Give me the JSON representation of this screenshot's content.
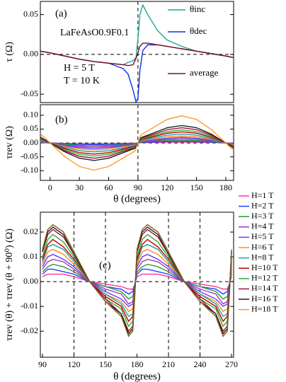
{
  "chart_data": [
    {
      "type": "line",
      "panel_label": "(a)",
      "ylabel": "τ (Ω)",
      "annotations": [
        "LaFeAsO0.9F0.1",
        "H = 5 T",
        "T = 10 K"
      ],
      "xlim": [
        -10,
        188
      ],
      "ylim": [
        -0.0605,
        0.0665
      ],
      "yticks": [
        -0.05,
        {
          "value": 0,
          "label": "0.00"
        },
        0.05
      ],
      "hlines": [
        0
      ],
      "vlines": [
        90
      ],
      "x": [
        -10,
        0,
        15,
        30,
        45,
        60,
        75,
        80,
        85,
        88,
        90,
        92,
        95,
        100,
        110,
        120,
        135,
        150,
        165,
        180,
        188
      ],
      "series": [
        {
          "name": "θinc",
          "color": "#1fa39a",
          "values": [
            0.004,
            0.002,
            -0.002,
            -0.006,
            -0.009,
            -0.011,
            -0.013,
            -0.01,
            -0.008,
            -0.004,
            0.02,
            0.05,
            0.062,
            0.05,
            0.03,
            0.018,
            0.01,
            0.004,
            0.001,
            -0.002,
            -0.004
          ]
        },
        {
          "name": "θdec",
          "color": "#1030e0",
          "values": [
            0.004,
            0.002,
            -0.002,
            -0.006,
            -0.009,
            -0.011,
            -0.018,
            -0.025,
            -0.045,
            -0.06,
            -0.055,
            -0.02,
            0.005,
            0.012,
            0.012,
            0.01,
            0.007,
            0.004,
            0.001,
            -0.002,
            -0.004
          ]
        },
        {
          "name": "average",
          "color": "#7a1020",
          "values": [
            0.004,
            0.002,
            -0.002,
            -0.006,
            -0.009,
            -0.011,
            -0.013,
            -0.014,
            -0.013,
            -0.005,
            0.002,
            0.01,
            0.014,
            0.014,
            0.012,
            0.01,
            0.007,
            0.004,
            0.001,
            -0.002,
            -0.004
          ]
        }
      ]
    },
    {
      "type": "line",
      "panel_label": "(b)",
      "ylabel": "τrev (Ω)",
      "xlabel": "θ (degrees)",
      "xlim": [
        -10,
        188
      ],
      "ylim": [
        -0.135,
        0.138
      ],
      "xticks": [
        0,
        30,
        60,
        90,
        120,
        150,
        180
      ],
      "yticks": [
        {
          "value": -0.1,
          "label": "-0.10"
        },
        -0.05,
        {
          "value": 0,
          "label": "0.00"
        },
        0.05,
        {
          "value": 0.1,
          "label": "0.10"
        }
      ],
      "hlines": [
        0
      ],
      "vlines": [
        90
      ],
      "x": [
        -10,
        0,
        15,
        30,
        45,
        60,
        75,
        87,
        93,
        105,
        120,
        135,
        150,
        165,
        180,
        188
      ],
      "series": [
        {
          "name": "H=1 T",
          "color": "#ff3399",
          "values": [
            0.001,
            0,
            -0.002,
            -0.003,
            -0.003,
            -0.003,
            -0.002,
            -0.001,
            0.001,
            0.002,
            0.003,
            0.003,
            0.003,
            0.002,
            0,
            -0.001
          ]
        },
        {
          "name": "H=2 T",
          "color": "#1f3fff",
          "values": [
            0.002,
            0,
            -0.003,
            -0.005,
            -0.006,
            -0.005,
            -0.003,
            -0.002,
            0.002,
            0.003,
            0.005,
            0.006,
            0.005,
            0.003,
            0,
            -0.002
          ]
        },
        {
          "name": "H=3 T",
          "color": "#2a9d2a",
          "values": [
            0.003,
            0,
            -0.005,
            -0.009,
            -0.01,
            -0.009,
            -0.006,
            -0.003,
            0.003,
            0.006,
            0.009,
            0.01,
            0.009,
            0.005,
            0,
            -0.003
          ]
        },
        {
          "name": "H=4 T",
          "color": "#b030c0",
          "values": [
            0.005,
            0,
            -0.008,
            -0.013,
            -0.015,
            -0.013,
            -0.008,
            -0.005,
            0.005,
            0.008,
            0.013,
            0.015,
            0.013,
            0.008,
            0,
            -0.004
          ]
        },
        {
          "name": "H=5 T",
          "color": "#6040ff",
          "values": [
            0.007,
            0,
            -0.01,
            -0.017,
            -0.02,
            -0.017,
            -0.011,
            -0.006,
            0.006,
            0.011,
            0.017,
            0.02,
            0.017,
            0.01,
            0,
            -0.006
          ]
        },
        {
          "name": "H=6 T",
          "color": "#ff8c1a",
          "values": [
            0.009,
            0,
            -0.013,
            -0.022,
            -0.025,
            -0.022,
            -0.014,
            -0.008,
            0.008,
            0.014,
            0.022,
            0.025,
            0.022,
            0.013,
            0,
            -0.007
          ]
        },
        {
          "name": "H=8 T",
          "color": "#20a0a0",
          "values": [
            0.011,
            0,
            -0.016,
            -0.028,
            -0.032,
            -0.028,
            -0.018,
            -0.01,
            0.01,
            0.018,
            0.028,
            0.032,
            0.028,
            0.016,
            0,
            -0.009
          ]
        },
        {
          "name": "H=10 T",
          "color": "#c00000",
          "values": [
            0.014,
            0,
            -0.02,
            -0.035,
            -0.04,
            -0.035,
            -0.022,
            -0.012,
            0.012,
            0.022,
            0.035,
            0.04,
            0.035,
            0.02,
            0,
            -0.011
          ]
        },
        {
          "name": "H=12 T",
          "color": "#30b030",
          "values": [
            0.016,
            0,
            -0.024,
            -0.041,
            -0.047,
            -0.041,
            -0.026,
            -0.014,
            0.014,
            0.026,
            0.041,
            0.047,
            0.041,
            0.024,
            0,
            -0.013
          ]
        },
        {
          "name": "H=14 T",
          "color": "#a01040",
          "values": [
            0.019,
            0,
            -0.028,
            -0.048,
            -0.055,
            -0.048,
            -0.03,
            -0.017,
            0.017,
            0.03,
            0.048,
            0.055,
            0.048,
            0.028,
            0,
            -0.015
          ]
        },
        {
          "name": "H=16 T",
          "color": "#202020",
          "values": [
            0.021,
            0,
            -0.032,
            -0.055,
            -0.063,
            -0.055,
            -0.035,
            -0.019,
            0.019,
            0.035,
            0.055,
            0.063,
            0.055,
            0.032,
            0,
            -0.018
          ]
        },
        {
          "name": "H=18 T",
          "color": "#ff9933",
          "values": [
            0.033,
            0,
            -0.049,
            -0.085,
            -0.098,
            -0.085,
            -0.054,
            -0.029,
            0.029,
            0.054,
            0.085,
            0.098,
            0.085,
            0.049,
            0,
            -0.027
          ]
        }
      ]
    },
    {
      "type": "line",
      "panel_label": "(c)",
      "ylabel": "τrev (θ) + τrev (θ + 90⁰) (Ω)",
      "xlabel": "θ (degrees)",
      "xlim": [
        88,
        272
      ],
      "ylim": [
        -0.0305,
        0.028
      ],
      "xticks": [
        90,
        120,
        150,
        180,
        210,
        240,
        270
      ],
      "yticks": [
        -0.02,
        -0.01,
        {
          "value": 0,
          "label": "0.00"
        },
        0.01,
        0.02
      ],
      "hlines": [
        0
      ],
      "vlines": [
        120,
        150,
        210,
        240
      ],
      "x": [
        90,
        95,
        100,
        110,
        120,
        135,
        150,
        165,
        172,
        176,
        178,
        180,
        185,
        190,
        200,
        210,
        225,
        240,
        255,
        262,
        266,
        268,
        270
      ],
      "series": [
        {
          "color": "#ff3399",
          "values": [
            0.002,
            0.003,
            0.003,
            0.003,
            0.002,
            0,
            -0.001,
            -0.002,
            -0.003,
            -0.003,
            -0.001,
            0.002,
            0.003,
            0.003,
            0.003,
            0.002,
            0,
            -0.001,
            -0.002,
            -0.003,
            -0.003,
            -0.001,
            0.002
          ]
        },
        {
          "color": "#1f3fff",
          "values": [
            0.003,
            0.005,
            0.005,
            0.004,
            0.003,
            0,
            -0.002,
            -0.003,
            -0.005,
            -0.004,
            -0.001,
            0.003,
            0.005,
            0.005,
            0.004,
            0.003,
            0,
            -0.002,
            -0.003,
            -0.005,
            -0.004,
            -0.001,
            0.003
          ]
        },
        {
          "color": "#2a9d2a",
          "values": [
            0.004,
            0.006,
            0.007,
            0.006,
            0.004,
            0,
            -0.002,
            -0.004,
            -0.007,
            -0.006,
            -0.001,
            0.004,
            0.006,
            0.007,
            0.006,
            0.004,
            0,
            -0.002,
            -0.004,
            -0.007,
            -0.006,
            -0.001,
            0.004
          ]
        },
        {
          "color": "#b030c0",
          "values": [
            0.005,
            0.008,
            0.009,
            0.008,
            0.005,
            0,
            -0.003,
            -0.005,
            -0.009,
            -0.008,
            -0.002,
            0.005,
            0.008,
            0.009,
            0.008,
            0.005,
            0,
            -0.003,
            -0.005,
            -0.009,
            -0.008,
            -0.002,
            0.005
          ]
        },
        {
          "color": "#6040ff",
          "values": [
            0.006,
            0.01,
            0.011,
            0.009,
            0.006,
            0,
            -0.004,
            -0.007,
            -0.01,
            -0.009,
            -0.002,
            0.006,
            0.01,
            0.011,
            0.009,
            0.006,
            0,
            -0.004,
            -0.007,
            -0.01,
            -0.009,
            -0.002,
            0.006
          ]
        },
        {
          "color": "#ff8c1a",
          "values": [
            0.007,
            0.012,
            0.013,
            0.011,
            0.007,
            0,
            -0.005,
            -0.008,
            -0.012,
            -0.011,
            -0.003,
            0.007,
            0.012,
            0.013,
            0.011,
            0.007,
            0,
            -0.005,
            -0.008,
            -0.012,
            -0.011,
            -0.003,
            0.007
          ]
        },
        {
          "color": "#20a0a0",
          "values": [
            0.008,
            0.014,
            0.015,
            0.013,
            0.008,
            0,
            -0.005,
            -0.009,
            -0.014,
            -0.013,
            -0.003,
            0.008,
            0.014,
            0.015,
            0.013,
            0.008,
            0,
            -0.005,
            -0.009,
            -0.014,
            -0.013,
            -0.003,
            0.008
          ]
        },
        {
          "color": "#c00000",
          "values": [
            0.009,
            0.015,
            0.017,
            0.014,
            0.009,
            0,
            -0.006,
            -0.01,
            -0.016,
            -0.014,
            -0.003,
            0.009,
            0.015,
            0.017,
            0.014,
            0.009,
            0,
            -0.006,
            -0.01,
            -0.016,
            -0.014,
            -0.003,
            0.009
          ]
        },
        {
          "color": "#30b030",
          "values": [
            0.01,
            0.017,
            0.019,
            0.016,
            0.01,
            0,
            -0.007,
            -0.011,
            -0.018,
            -0.016,
            -0.004,
            0.01,
            0.017,
            0.019,
            0.016,
            0.01,
            0,
            -0.007,
            -0.011,
            -0.018,
            -0.016,
            -0.004,
            0.01
          ]
        },
        {
          "color": "#a01040",
          "values": [
            0.012,
            0.019,
            0.021,
            0.018,
            0.011,
            0,
            -0.007,
            -0.013,
            -0.02,
            -0.018,
            -0.004,
            0.012,
            0.019,
            0.021,
            0.018,
            0.011,
            0,
            -0.007,
            -0.013,
            -0.02,
            -0.018,
            -0.004,
            0.012
          ]
        },
        {
          "color": "#202020",
          "values": [
            0.012,
            0.02,
            0.022,
            0.019,
            0.011,
            0,
            -0.008,
            -0.013,
            -0.021,
            -0.019,
            -0.004,
            0.012,
            0.02,
            0.022,
            0.019,
            0.011,
            0,
            -0.008,
            -0.013,
            -0.021,
            -0.019,
            -0.004,
            0.012
          ]
        },
        {
          "color": "#8a5a20",
          "values": [
            0.013,
            0.021,
            0.023,
            0.02,
            0.012,
            0,
            -0.008,
            -0.014,
            -0.022,
            -0.02,
            -0.005,
            0.013,
            0.021,
            0.023,
            0.02,
            0.012,
            0,
            -0.008,
            -0.014,
            -0.022,
            -0.02,
            -0.005,
            0.013
          ]
        }
      ]
    }
  ]
}
